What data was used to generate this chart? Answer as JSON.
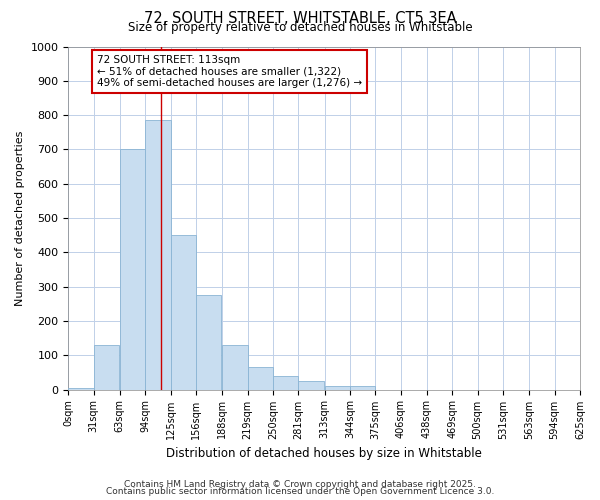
{
  "title": "72, SOUTH STREET, WHITSTABLE, CT5 3EA",
  "subtitle": "Size of property relative to detached houses in Whitstable",
  "xlabel": "Distribution of detached houses by size in Whitstable",
  "ylabel": "Number of detached properties",
  "bin_edges": [
    0,
    31,
    63,
    94,
    125,
    156,
    188,
    219,
    250,
    281,
    313,
    344,
    375,
    406,
    438,
    469,
    500,
    531,
    563,
    594,
    625
  ],
  "bar_heights": [
    5,
    130,
    700,
    785,
    450,
    275,
    130,
    65,
    40,
    25,
    10,
    10,
    0,
    0,
    0,
    0,
    0,
    0,
    0,
    0
  ],
  "bar_color": "#c8ddf0",
  "bar_edge_color": "#8ab4d4",
  "red_line_x": 113,
  "ylim": [
    0,
    1000
  ],
  "annotation_text": "72 SOUTH STREET: 113sqm\n← 51% of detached houses are smaller (1,322)\n49% of semi-detached houses are larger (1,276) →",
  "annotation_box_color": "#ffffff",
  "annotation_box_edge_color": "#cc0000",
  "footer_line1": "Contains HM Land Registry data © Crown copyright and database right 2025.",
  "footer_line2": "Contains public sector information licensed under the Open Government Licence 3.0.",
  "background_color": "#ffffff",
  "grid_color": "#c0d0e8",
  "tick_labels": [
    "0sqm",
    "31sqm",
    "63sqm",
    "94sqm",
    "125sqm",
    "156sqm",
    "188sqm",
    "219sqm",
    "250sqm",
    "281sqm",
    "313sqm",
    "344sqm",
    "375sqm",
    "406sqm",
    "438sqm",
    "469sqm",
    "500sqm",
    "531sqm",
    "563sqm",
    "594sqm",
    "625sqm"
  ]
}
